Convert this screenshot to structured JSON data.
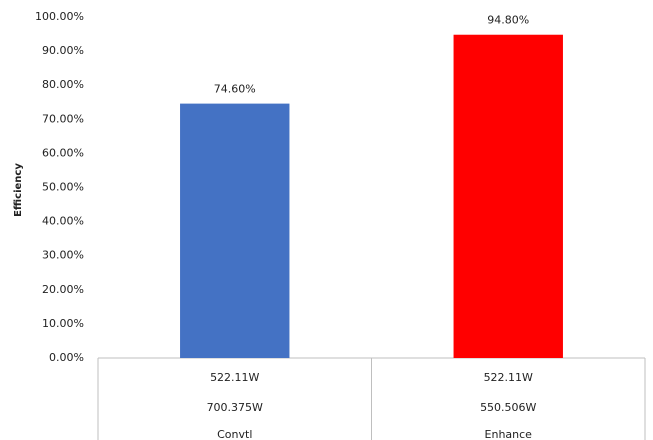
{
  "chart_data": {
    "type": "bar",
    "y_label": "Efficiency",
    "categories": [
      "Convtl",
      "Enhance"
    ],
    "category_rows": [
      [
        "522.11W",
        "522.11W"
      ],
      [
        "700.375W",
        "550.506W"
      ]
    ],
    "values": [
      74.6,
      94.8
    ],
    "value_labels": [
      "74.60%",
      "94.80%"
    ],
    "colors": [
      "#4472c4",
      "#ff0000"
    ],
    "ylim": [
      0,
      100
    ],
    "yticks": [
      {
        "value": 0,
        "label": "0.00%"
      },
      {
        "value": 10,
        "label": "10.00%"
      },
      {
        "value": 20,
        "label": "20.00%"
      },
      {
        "value": 30,
        "label": "30.00%"
      },
      {
        "value": 40,
        "label": "40.00%"
      },
      {
        "value": 50,
        "label": "50.00%"
      },
      {
        "value": 60,
        "label": "60.00%"
      },
      {
        "value": 70,
        "label": "70.00%"
      },
      {
        "value": 80,
        "label": "80.00%"
      },
      {
        "value": 90,
        "label": "90.00%"
      },
      {
        "value": 100,
        "label": "100.00%"
      }
    ],
    "grid": false
  }
}
